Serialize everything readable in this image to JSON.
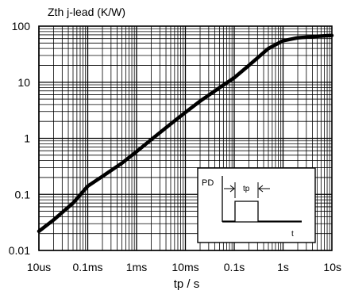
{
  "chart_data": {
    "type": "line",
    "title": "Zth j-lead (K/W)",
    "xlabel": "tp / s",
    "ylabel": "Zth j-lead (K/W)",
    "x_scale": "log",
    "y_scale": "log",
    "xlim": [
      1e-05,
      10
    ],
    "ylim": [
      0.01,
      100
    ],
    "grid": true,
    "x_ticks": [
      {
        "value": 1e-05,
        "label": "10us"
      },
      {
        "value": 0.0001,
        "label": "0.1ms"
      },
      {
        "value": 0.001,
        "label": "1ms"
      },
      {
        "value": 0.01,
        "label": "10ms"
      },
      {
        "value": 0.1,
        "label": "0.1s"
      },
      {
        "value": 1,
        "label": "1s"
      },
      {
        "value": 10,
        "label": "10s"
      }
    ],
    "y_ticks": [
      {
        "value": 0.01,
        "label": "0.01"
      },
      {
        "value": 0.1,
        "label": "0.1"
      },
      {
        "value": 1,
        "label": "1"
      },
      {
        "value": 10,
        "label": "10"
      },
      {
        "value": 100,
        "label": "100"
      }
    ],
    "series": [
      {
        "x": [
          1e-05,
          2e-05,
          5e-05,
          0.0001,
          0.0002,
          0.0005,
          0.001,
          0.002,
          0.005,
          0.01,
          0.02,
          0.05,
          0.1,
          0.2,
          0.5,
          1,
          2,
          5,
          10
        ],
        "y": [
          0.022,
          0.035,
          0.07,
          0.14,
          0.21,
          0.36,
          0.58,
          0.95,
          1.8,
          2.9,
          4.6,
          8.0,
          12.0,
          20.0,
          40.0,
          55.0,
          62.0,
          66.0,
          68.0
        ]
      }
    ],
    "inset": {
      "label_y": "PD",
      "label_x": "t",
      "label_pulse": "tp"
    }
  }
}
